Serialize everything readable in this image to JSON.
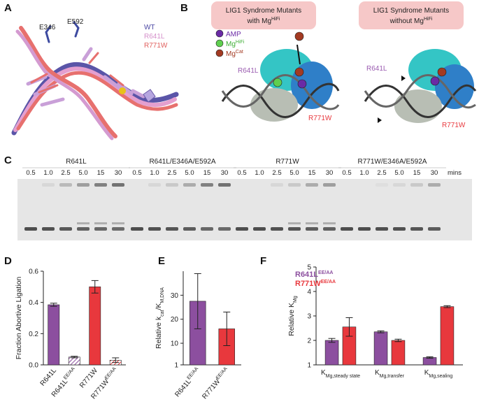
{
  "panel_labels": [
    "A",
    "B",
    "C",
    "D",
    "E",
    "F"
  ],
  "panel_a": {
    "residues": [
      "E346",
      "E592"
    ],
    "legend": [
      "WT",
      "R641L",
      "R771W"
    ]
  },
  "panel_b": {
    "boxes": [
      {
        "line1": "LIG1 Syndrome Mutants",
        "line2": "with Mg",
        "sup": "HiFi"
      },
      {
        "line1": "LIG1 Syndrome Mutants",
        "line2": "without Mg",
        "sup": "HiFi"
      }
    ],
    "legend": [
      {
        "text": "AMP"
      },
      {
        "text": "Mg",
        "sup": "HiFi"
      },
      {
        "text": "Mg",
        "sup": "Cat"
      }
    ],
    "mutations": [
      "R641L",
      "R771W"
    ]
  },
  "panel_c": {
    "groups": [
      "R641L",
      "R641L/E346A/E592A",
      "R771W",
      "R771W/E346A/E592A"
    ],
    "times": [
      "0.5",
      "1.0",
      "2.5",
      "5.0",
      "15",
      "30"
    ],
    "unit": "mins"
  },
  "chart_data": [
    {
      "type": "bar",
      "ylabel": "Fraction Abortive Ligation",
      "categories": [
        {
          "name": "R641L"
        },
        {
          "name": "R641L",
          "sup": "EE/AA"
        },
        {
          "name": "R771W"
        },
        {
          "name": "R771W",
          "sup": "EE/AA"
        }
      ],
      "values": [
        0.385,
        0.05,
        0.5,
        0.03
      ],
      "errors": [
        0.01,
        0.005,
        0.04,
        0.015
      ],
      "colors": [
        "#8c4f9f",
        "#8c4f9f",
        "#e8383d",
        "#e8383d"
      ],
      "hatched": [
        false,
        true,
        false,
        true
      ],
      "ylim": [
        0,
        0.6
      ],
      "yticks": [
        {
          "value": 0,
          "label": "0.0"
        },
        {
          "value": 0.2,
          "label": "0.2"
        },
        {
          "value": 0.4,
          "label": "0.4"
        },
        {
          "value": 0.6,
          "label": "0.6"
        }
      ]
    },
    {
      "type": "bar",
      "ylabel": [
        "Relative k",
        "cat",
        "/K",
        "M,DNA"
      ],
      "categories": [
        {
          "name": "R641L",
          "sup": "EE/AA"
        },
        {
          "name": "R771W",
          "sup": "EE/AA"
        }
      ],
      "values": [
        27.5,
        16
      ],
      "errors": [
        11.5,
        7
      ],
      "colors": [
        "#8c4f9f",
        "#e8383d"
      ],
      "ylim": [
        1,
        40
      ],
      "yticks": [
        1,
        10,
        20,
        30
      ]
    },
    {
      "type": "bar",
      "ylabel": [
        "Relative K",
        "Mg"
      ],
      "category_symbol": "K",
      "categories": [
        "Mg,steady state",
        "Mg,transfer",
        "Mg,sealing"
      ],
      "series": [
        {
          "name": "R641L",
          "sup": "EE/AA",
          "color": "#8c4f9f",
          "values": [
            2.0,
            2.35,
            1.3
          ],
          "errors": [
            0.08,
            0.04,
            0.03
          ]
        },
        {
          "name": "R771W",
          "sup": "EE/AA",
          "color": "#e8383d",
          "values": [
            2.55,
            2.0,
            3.38
          ],
          "errors": [
            0.38,
            0.05,
            0.04
          ]
        }
      ],
      "ylim": [
        1,
        5
      ],
      "yticks": [
        1,
        2,
        3,
        4,
        5
      ]
    }
  ]
}
